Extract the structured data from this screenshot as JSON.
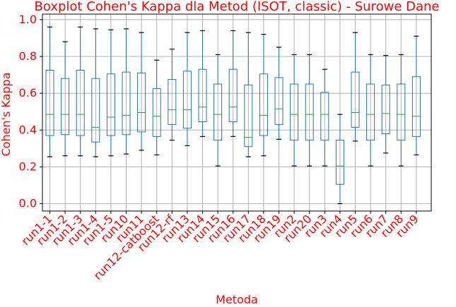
{
  "chart_data": {
    "type": "boxplot",
    "title": "Boxplot Cohen's Kappa dla Metod (ISOT, classic) - Surowe Dane",
    "xlabel": "Metoda",
    "ylabel": "Cohen's Kappa",
    "ylim": [
      -0.04,
      1.03
    ],
    "yticks": [
      "0.0",
      "0.2",
      "0.4",
      "0.6",
      "0.8",
      "1.0"
    ],
    "grid": true,
    "colors": {
      "text": "#ff0000",
      "box": "#1f77b4",
      "median": "#2ca02c",
      "grid": "#b0b0b0",
      "axis": "#000000"
    },
    "categories": [
      "run1-1",
      "run1-2",
      "run1-3",
      "run1-4",
      "run1-5",
      "run10",
      "run11",
      "run12-catboost",
      "run12-rf",
      "run13",
      "run14",
      "run15",
      "run16",
      "run17",
      "run18",
      "run19",
      "run2",
      "run20",
      "run3",
      "run4",
      "run5",
      "run6",
      "run7",
      "run8",
      "run9"
    ],
    "boxes": [
      {
        "min": 0.255,
        "q1": 0.37,
        "median": 0.485,
        "q3": 0.725,
        "max": 0.96
      },
      {
        "min": 0.26,
        "q1": 0.375,
        "median": 0.485,
        "q3": 0.68,
        "max": 0.88
      },
      {
        "min": 0.26,
        "q1": 0.37,
        "median": 0.485,
        "q3": 0.725,
        "max": 0.96
      },
      {
        "min": 0.255,
        "q1": 0.335,
        "median": 0.415,
        "q3": 0.68,
        "max": 0.95
      },
      {
        "min": 0.26,
        "q1": 0.37,
        "median": 0.47,
        "q3": 0.705,
        "max": 0.945
      },
      {
        "min": 0.27,
        "q1": 0.375,
        "median": 0.48,
        "q3": 0.715,
        "max": 0.95
      },
      {
        "min": 0.29,
        "q1": 0.39,
        "median": 0.495,
        "q3": 0.71,
        "max": 0.93
      },
      {
        "min": 0.265,
        "q1": 0.365,
        "median": 0.475,
        "q3": 0.625,
        "max": 0.78
      },
      {
        "min": 0.345,
        "q1": 0.43,
        "median": 0.51,
        "q3": 0.675,
        "max": 0.84
      },
      {
        "min": 0.315,
        "q1": 0.41,
        "median": 0.51,
        "q3": 0.72,
        "max": 0.93
      },
      {
        "min": 0.365,
        "q1": 0.445,
        "median": 0.525,
        "q3": 0.73,
        "max": 0.94
      },
      {
        "min": 0.205,
        "q1": 0.345,
        "median": 0.485,
        "q3": 0.65,
        "max": 0.81
      },
      {
        "min": 0.365,
        "q1": 0.445,
        "median": 0.525,
        "q3": 0.73,
        "max": 0.94
      },
      {
        "min": 0.255,
        "q1": 0.31,
        "median": 0.36,
        "q3": 0.645,
        "max": 0.93
      },
      {
        "min": 0.26,
        "q1": 0.37,
        "median": 0.48,
        "q3": 0.705,
        "max": 0.92
      },
      {
        "min": 0.35,
        "q1": 0.43,
        "median": 0.515,
        "q3": 0.685,
        "max": 0.85
      },
      {
        "min": 0.205,
        "q1": 0.345,
        "median": 0.485,
        "q3": 0.65,
        "max": 0.81
      },
      {
        "min": 0.205,
        "q1": 0.345,
        "median": 0.485,
        "q3": 0.65,
        "max": 0.81
      },
      {
        "min": 0.205,
        "q1": 0.345,
        "median": 0.485,
        "q3": 0.605,
        "max": 0.73
      },
      {
        "min": 0.0,
        "q1": 0.105,
        "median": 0.205,
        "q3": 0.345,
        "max": 0.485
      },
      {
        "min": 0.34,
        "q1": 0.415,
        "median": 0.495,
        "q3": 0.715,
        "max": 0.93
      },
      {
        "min": 0.205,
        "q1": 0.345,
        "median": 0.485,
        "q3": 0.65,
        "max": 0.81
      },
      {
        "min": 0.275,
        "q1": 0.38,
        "median": 0.49,
        "q3": 0.645,
        "max": 0.805
      },
      {
        "min": 0.205,
        "q1": 0.345,
        "median": 0.485,
        "q3": 0.65,
        "max": 0.81
      },
      {
        "min": 0.265,
        "q1": 0.365,
        "median": 0.475,
        "q3": 0.69,
        "max": 0.91
      }
    ]
  }
}
